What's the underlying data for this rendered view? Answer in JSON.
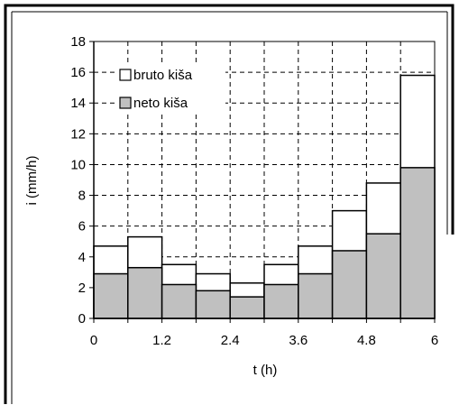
{
  "chart_data": {
    "type": "bar",
    "subtype": "stacked-histogram",
    "title": "",
    "xlabel": "t (h)",
    "ylabel": "i (mm/h)",
    "xlim": [
      0,
      6
    ],
    "ylim": [
      0,
      18
    ],
    "x_ticks": [
      "0",
      "1.2",
      "2.4",
      "3.6",
      "4.8",
      "6"
    ],
    "y_ticks": [
      "0",
      "2",
      "4",
      "6",
      "8",
      "10",
      "12",
      "14",
      "16",
      "18"
    ],
    "grid": true,
    "grid_style": "dashed",
    "legend_position": "top-left",
    "bin_width": 0.6,
    "bin_edges": [
      0,
      0.6,
      1.2,
      1.8,
      2.4,
      3.0,
      3.6,
      4.2,
      4.8,
      5.4,
      6.0
    ],
    "series": [
      {
        "name": "bruto kiša",
        "color": "#ffffff",
        "values": [
          4.7,
          5.3,
          3.5,
          2.9,
          2.3,
          3.5,
          4.7,
          7.0,
          8.8,
          15.8
        ]
      },
      {
        "name": "neto kiša",
        "color": "#c0c0c0",
        "values": [
          2.9,
          3.3,
          2.2,
          1.8,
          1.4,
          2.2,
          2.9,
          4.4,
          5.5,
          9.8
        ]
      }
    ]
  }
}
